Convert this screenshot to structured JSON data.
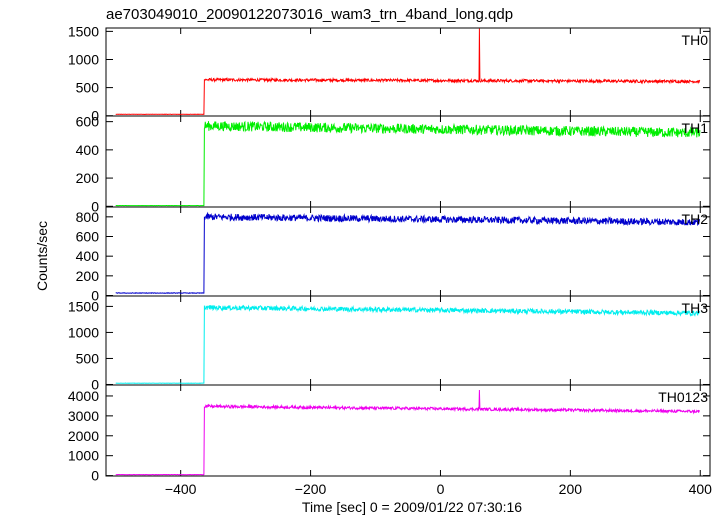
{
  "chart_data": {
    "type": "line",
    "title": "ae703049010_20090122073016_wam3_trn_4band_long.qdp",
    "xlabel": "Time [sec] 0 = 2009/01/22 07:30:16",
    "ylabel": "Counts/sec",
    "xlim": [
      -515,
      415
    ],
    "xticks": [
      -400,
      -200,
      0,
      200,
      400
    ],
    "xtick_labels": [
      "−400",
      "−200",
      "0",
      "200",
      "400"
    ],
    "x_start": -500,
    "x_end": 400,
    "grid": false,
    "panels": [
      {
        "name": "TH0",
        "color": "#ff0000",
        "ylim": [
          -5,
          1560
        ],
        "yticks": [
          0,
          500,
          1000,
          1500
        ],
        "baseline": 25,
        "onset": -364,
        "level_start": 640,
        "level_end": 610,
        "noise": 25,
        "spikes": [
          {
            "x": 60,
            "y": 1550
          }
        ]
      },
      {
        "name": "TH1",
        "color": "#00ee00",
        "ylim": [
          -5,
          640
        ],
        "yticks": [
          0,
          200,
          400,
          600
        ],
        "baseline": 5,
        "onset": -364,
        "level_start": 570,
        "level_end": 520,
        "noise": 35,
        "spikes": []
      },
      {
        "name": "TH2",
        "color": "#0000cc",
        "ylim": [
          -5,
          900
        ],
        "yticks": [
          0,
          200,
          400,
          600,
          800
        ],
        "baseline": 25,
        "onset": -364,
        "level_start": 800,
        "level_end": 745,
        "noise": 35,
        "spikes": []
      },
      {
        "name": "TH3",
        "color": "#00eeee",
        "ylim": [
          -10,
          1700
        ],
        "yticks": [
          0,
          500,
          1000,
          1500
        ],
        "baseline": 25,
        "onset": -364,
        "level_start": 1480,
        "level_end": 1370,
        "noise": 45,
        "spikes": []
      },
      {
        "name": "TH0123",
        "color": "#ee00ee",
        "ylim": [
          -20,
          4550
        ],
        "yticks": [
          0,
          1000,
          2000,
          3000,
          4000
        ],
        "baseline": 50,
        "onset": -364,
        "level_start": 3480,
        "level_end": 3220,
        "noise": 70,
        "spikes": [
          {
            "x": 60,
            "y": 4300
          }
        ]
      }
    ]
  }
}
